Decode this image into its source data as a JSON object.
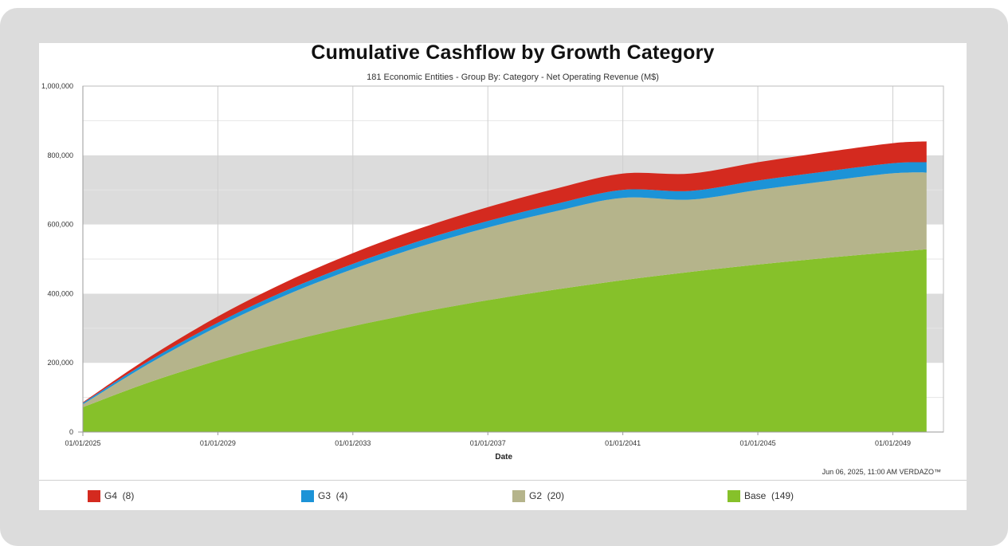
{
  "chart_data": {
    "type": "area",
    "stacked": true,
    "title": "Cumulative Cashflow by Growth Category",
    "subtitle": "181 Economic Entities - Group By: Category - Net Operating Revenue (M$)",
    "xlabel": "Date",
    "ylabel": "",
    "x_ticks": [
      "01/01/2025",
      "01/01/2029",
      "01/01/2033",
      "01/01/2037",
      "01/01/2041",
      "01/01/2045",
      "01/01/2049"
    ],
    "y_ticks": [
      "0",
      "200,000",
      "400,000",
      "600,000",
      "800,000",
      "1,000,000"
    ],
    "ylim": [
      0,
      1000000
    ],
    "xlim": [
      2025,
      2050.5
    ],
    "grid": true,
    "x": [
      2025,
      2027,
      2029,
      2031,
      2033,
      2035,
      2037,
      2039,
      2041,
      2043,
      2045,
      2047,
      2049,
      2050
    ],
    "series": [
      {
        "name": "Base",
        "count": "(149)",
        "color": "#86c12a",
        "values": [
          72000,
          145000,
          207000,
          260000,
          306000,
          346000,
          381000,
          412000,
          439000,
          463000,
          484000,
          503000,
          520000,
          528000
        ]
      },
      {
        "name": "G2",
        "count": "(20)",
        "color": "#b5b48b",
        "values": [
          8000,
          55000,
          98000,
          135000,
          165000,
          190000,
          210000,
          226000,
          238000,
          209000,
          216000,
          222000,
          228000,
          222000
        ]
      },
      {
        "name": "G3",
        "count": "(4)",
        "color": "#1c93d7",
        "values": [
          4000,
          8000,
          11000,
          13000,
          15000,
          17000,
          19000,
          21000,
          23000,
          25000,
          27000,
          28000,
          29000,
          30000
        ]
      },
      {
        "name": "G4",
        "count": "(8)",
        "color": "#d42a1f",
        "values": [
          2000,
          10000,
          18000,
          25000,
          31000,
          36000,
          40000,
          44000,
          47000,
          50000,
          53000,
          56000,
          58000,
          60000
        ]
      }
    ],
    "legend_position": "bottom"
  },
  "credit": "Jun 06, 2025, 11:00 AM VERDAZO™"
}
